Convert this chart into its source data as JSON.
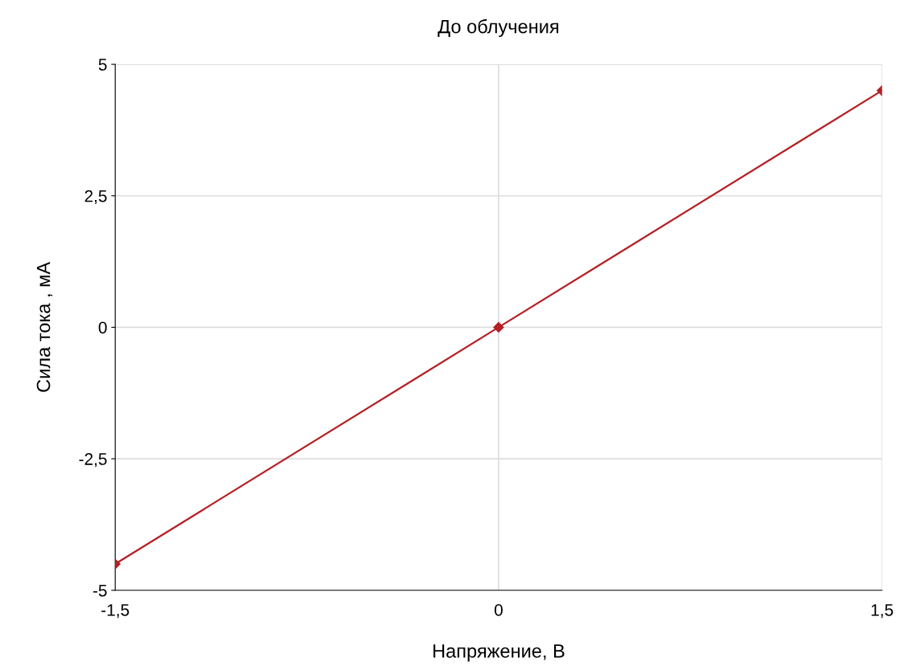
{
  "chart_data": {
    "type": "line",
    "title": "До облучения",
    "xlabel": "Напряжение, В",
    "ylabel": "Сила тока , мА",
    "series": [
      {
        "color": "#b52025",
        "x": [
          -1.5,
          0,
          1.5
        ],
        "values": [
          -4.5,
          0,
          4.5
        ]
      }
    ],
    "xlim": [
      -1.5,
      1.5
    ],
    "xticks": [
      {
        "value": -1.5,
        "label": "-1,5"
      },
      0,
      {
        "value": 1.5,
        "label": "1,5"
      }
    ],
    "ylim": [
      -5,
      5
    ],
    "yticks": [
      -5,
      {
        "value": -2.5,
        "label": "-2,5"
      },
      0,
      {
        "value": 2.5,
        "label": "2,5"
      },
      5
    ],
    "grid": true,
    "marker": "diamond",
    "line_style": "solid"
  }
}
